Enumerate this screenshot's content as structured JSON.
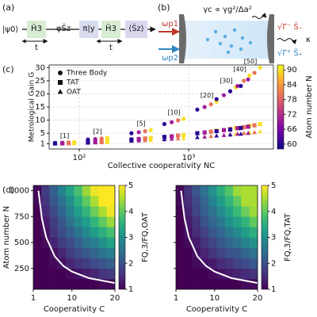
{
  "panel_a": {
    "label": "(a)",
    "state": "|ψ0⟩",
    "steps": [
      "Ĥ3",
      "φŜz",
      "π|y",
      "Ĥ3",
      "⟨Ŝz⟩"
    ],
    "durations": [
      "t",
      "t"
    ]
  },
  "panel_b": {
    "label": "(b)",
    "rate": "γc ∝ γg²/Δa²",
    "pump1": "ωp1",
    "pump2": "ωp2",
    "emission_minus": "√Γ⁻ Ŝ₋",
    "decay": "κ",
    "emission_plus": "√Γ⁺ Ŝ₊"
  },
  "chart_data": [
    {
      "type": "scatter",
      "label": "(c)",
      "xlabel": "Collective cooperativity NC",
      "ylabel": "Metrological Gain G",
      "xscale": "log",
      "xlim": [
        53,
        5960
      ],
      "xticks": [
        {
          "value": 100,
          "label": "10²"
        },
        {
          "value": 1000,
          "label": "10³"
        }
      ],
      "ylim": [
        -1,
        31
      ],
      "yticks": [
        1,
        5,
        10,
        15,
        20,
        25,
        30
      ],
      "grid": true,
      "legend": "upper left",
      "colormap": "plasma",
      "clim": [
        58,
        92
      ],
      "cticks": [
        60,
        66,
        72,
        78,
        84,
        90
      ],
      "clabel": "Atom number N",
      "annotations": [
        "[1]",
        "[2]",
        "[5]",
        "[10]",
        "[20]",
        "[30]",
        "[40]",
        "[50]"
      ],
      "series": [
        {
          "name": "Three Body",
          "marker": "circle",
          "x": [
            60,
            70,
            80,
            90,
            120,
            140,
            160,
            180,
            300,
            350,
            400,
            450,
            600,
            700,
            800,
            900,
            1200,
            1400,
            1600,
            1800,
            1800,
            2100,
            2400,
            2700,
            2400,
            2800,
            3200,
            3600,
            3000,
            3500,
            4000,
            4500
          ],
          "values": [
            1.3,
            1.4,
            1.5,
            1.6,
            2.6,
            2.8,
            3.0,
            3.2,
            5.0,
            5.4,
            5.8,
            6.2,
            8.5,
            9.2,
            9.9,
            10.5,
            14,
            15,
            16,
            17,
            18,
            19.5,
            21,
            22.5,
            21,
            23,
            25,
            27,
            23,
            25.5,
            28,
            30
          ],
          "c": [
            60,
            70,
            80,
            90,
            60,
            70,
            80,
            90,
            60,
            70,
            80,
            90,
            60,
            70,
            80,
            90,
            60,
            70,
            80,
            90,
            60,
            70,
            80,
            90,
            60,
            70,
            80,
            90,
            60,
            70,
            80,
            90
          ]
        },
        {
          "name": "TAT",
          "marker": "square",
          "x": [
            60,
            70,
            80,
            90,
            120,
            140,
            160,
            180,
            300,
            350,
            400,
            450,
            600,
            700,
            800,
            900,
            1200,
            1400,
            1600,
            1800,
            1800,
            2100,
            2400,
            2700,
            2400,
            2800,
            3200,
            3600,
            3000,
            3500,
            4000,
            4500
          ],
          "values": [
            1.1,
            1.15,
            1.2,
            1.25,
            1.6,
            1.7,
            1.8,
            1.9,
            2.6,
            2.8,
            3.0,
            3.2,
            3.6,
            3.8,
            4.1,
            4.3,
            5,
            5.3,
            5.6,
            6,
            5.8,
            6.2,
            6.6,
            7,
            6.4,
            6.9,
            7.3,
            7.8,
            7,
            7.5,
            8,
            8.5
          ],
          "c": [
            60,
            70,
            80,
            90,
            60,
            70,
            80,
            90,
            60,
            70,
            80,
            90,
            60,
            70,
            80,
            90,
            60,
            70,
            80,
            90,
            60,
            70,
            80,
            90,
            60,
            70,
            80,
            90,
            60,
            70,
            80,
            90
          ]
        },
        {
          "name": "OAT",
          "marker": "triangle",
          "x": [
            60,
            70,
            80,
            90,
            120,
            140,
            160,
            180,
            300,
            350,
            400,
            450,
            600,
            700,
            800,
            900,
            1200,
            1400,
            1600,
            1800,
            1800,
            2100,
            2400,
            2700,
            2400,
            2800,
            3200,
            3600,
            3000,
            3500,
            4000,
            4500
          ],
          "values": [
            1.0,
            1.05,
            1.1,
            1.1,
            1.3,
            1.4,
            1.45,
            1.5,
            2,
            2.1,
            2.2,
            2.3,
            2.6,
            2.8,
            2.9,
            3.0,
            3.4,
            3.6,
            3.8,
            4,
            4,
            4.2,
            4.5,
            4.7,
            4.4,
            4.7,
            5,
            5.2,
            4.7,
            5,
            5.3,
            5.6
          ],
          "c": [
            60,
            70,
            80,
            90,
            60,
            70,
            80,
            90,
            60,
            70,
            80,
            90,
            60,
            70,
            80,
            90,
            60,
            70,
            80,
            90,
            60,
            70,
            80,
            90,
            60,
            70,
            80,
            90,
            60,
            70,
            80,
            90
          ]
        }
      ]
    },
    {
      "type": "heatmap",
      "label": "(d)",
      "xlabel": "Cooperativity C",
      "ylabel": "Atom number N",
      "x": [
        1.95,
        3.85,
        5.75,
        7.65,
        9.55,
        11.45,
        13.35,
        15.25,
        17.15,
        19.05
      ],
      "y": [
        100,
        200,
        300,
        400,
        500,
        600,
        700,
        800,
        900,
        1000
      ],
      "xlim": [
        1,
        20
      ],
      "xticks": [
        1,
        10,
        20
      ],
      "ylim": [
        50,
        1050
      ],
      "yticks": [
        250,
        500,
        750,
        1000
      ],
      "colormap": "viridis",
      "clim": [
        1,
        5
      ],
      "cticks": [
        1,
        2,
        3,
        4,
        5
      ],
      "clabel": "FQ,3/FQ,OAT",
      "z": [
        [
          1,
          1,
          1,
          1,
          1,
          1,
          1,
          1,
          1.1,
          1.1
        ],
        [
          1,
          1,
          1,
          1,
          1.1,
          1.2,
          1.3,
          1.4,
          1.6,
          1.7
        ],
        [
          1,
          1,
          1.1,
          1.2,
          1.4,
          1.6,
          1.7,
          1.9,
          2.0,
          2.2
        ],
        [
          1,
          1,
          1.2,
          1.4,
          1.7,
          1.9,
          2.1,
          2.3,
          2.5,
          2.7
        ],
        [
          1,
          1.1,
          1.4,
          1.7,
          1.9,
          2.2,
          2.5,
          2.7,
          3.0,
          3.3
        ],
        [
          1,
          1.2,
          1.6,
          1.9,
          2.2,
          2.5,
          2.9,
          3.2,
          3.5,
          3.8
        ],
        [
          1,
          1.3,
          1.7,
          2.1,
          2.5,
          2.9,
          3.2,
          3.6,
          4.0,
          4.4
        ],
        [
          1,
          1.5,
          1.9,
          2.3,
          2.8,
          3.2,
          3.6,
          4.1,
          4.5,
          4.9
        ],
        [
          1.1,
          1.6,
          2.1,
          2.5,
          3.0,
          3.5,
          4.0,
          4.5,
          5,
          5
        ],
        [
          1.1,
          1.7,
          2.2,
          2.8,
          3.3,
          3.8,
          4.4,
          4.9,
          5,
          5
        ]
      ],
      "curve": {
        "x": [
          2.2,
          3,
          4,
          6,
          8,
          10,
          14,
          20
        ],
        "y": [
          1000,
          733,
          550,
          367,
          275,
          220,
          157,
          110
        ]
      }
    },
    {
      "type": "heatmap",
      "xlabel": "Cooperativity C",
      "x": [
        1.95,
        3.85,
        5.75,
        7.65,
        9.55,
        11.45,
        13.35,
        15.25,
        17.15,
        19.05
      ],
      "y": [
        100,
        200,
        300,
        400,
        500,
        600,
        700,
        800,
        900,
        1000
      ],
      "xlim": [
        1,
        20
      ],
      "xticks": [
        1,
        10,
        20
      ],
      "ylim": [
        50,
        1050
      ],
      "yticks": [
        250,
        500,
        750,
        1000
      ],
      "yticklabels": false,
      "colormap": "viridis",
      "clim": [
        1,
        5
      ],
      "cticks": [
        1,
        2,
        3,
        4,
        5
      ],
      "clabel": "FQ,3/FQ,TAT",
      "z": [
        [
          1,
          1,
          1,
          1,
          1,
          1,
          1,
          1,
          1.1,
          1.1
        ],
        [
          1,
          1,
          1,
          1,
          1.1,
          1.2,
          1.3,
          1.4,
          1.5,
          1.6
        ],
        [
          1,
          1,
          1.1,
          1.2,
          1.3,
          1.5,
          1.6,
          1.8,
          1.9,
          2.1
        ],
        [
          1,
          1,
          1.2,
          1.4,
          1.6,
          1.8,
          2.0,
          2.1,
          2.3,
          2.5
        ],
        [
          1,
          1.1,
          1.3,
          1.6,
          1.8,
          2.1,
          2.3,
          2.5,
          2.8,
          3.0
        ],
        [
          1,
          1.2,
          1.5,
          1.8,
          2.1,
          2.3,
          2.6,
          2.9,
          3.2,
          3.5
        ],
        [
          1,
          1.3,
          1.6,
          2.0,
          2.3,
          2.6,
          3.0,
          3.3,
          3.6,
          4.0
        ],
        [
          1,
          1.4,
          1.8,
          2.2,
          2.5,
          2.9,
          3.3,
          3.7,
          4.1,
          4.4
        ],
        [
          1.1,
          1.5,
          1.9,
          2.3,
          2.8,
          3.2,
          3.6,
          4.0,
          4.5,
          4.5
        ],
        [
          1.1,
          1.6,
          2.1,
          2.5,
          3.0,
          3.5,
          3.9,
          4.4,
          4.5,
          4.5
        ]
      ],
      "curve": {
        "x": [
          2.2,
          3,
          4,
          6,
          8,
          10,
          14,
          20
        ],
        "y": [
          1000,
          733,
          550,
          367,
          275,
          220,
          157,
          110
        ]
      }
    }
  ]
}
